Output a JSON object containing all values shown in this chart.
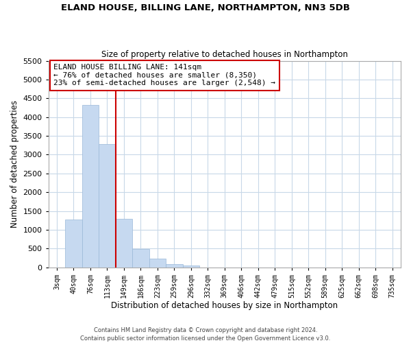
{
  "title": "ELAND HOUSE, BILLING LANE, NORTHAMPTON, NN3 5DB",
  "subtitle": "Size of property relative to detached houses in Northampton",
  "xlabel": "Distribution of detached houses by size in Northampton",
  "ylabel": "Number of detached properties",
  "bar_labels": [
    "3sqm",
    "40sqm",
    "76sqm",
    "113sqm",
    "149sqm",
    "186sqm",
    "223sqm",
    "259sqm",
    "296sqm",
    "332sqm",
    "369sqm",
    "406sqm",
    "442sqm",
    "479sqm",
    "515sqm",
    "552sqm",
    "589sqm",
    "625sqm",
    "662sqm",
    "698sqm",
    "735sqm"
  ],
  "bar_values": [
    0,
    1270,
    4320,
    3290,
    1290,
    480,
    235,
    85,
    45,
    0,
    0,
    0,
    0,
    0,
    0,
    0,
    0,
    0,
    0,
    0,
    0
  ],
  "bar_color": "#c6d9f0",
  "bar_edge_color": "#9ab8d8",
  "vline_color": "#cc0000",
  "vline_x_index": 3.5,
  "annotation_line1": "ELAND HOUSE BILLING LANE: 141sqm",
  "annotation_line2": "← 76% of detached houses are smaller (8,350)",
  "annotation_line3": "23% of semi-detached houses are larger (2,548) →",
  "ylim": [
    0,
    5500
  ],
  "yticks": [
    0,
    500,
    1000,
    1500,
    2000,
    2500,
    3000,
    3500,
    4000,
    4500,
    5000,
    5500
  ],
  "footer_line1": "Contains HM Land Registry data © Crown copyright and database right 2024.",
  "footer_line2": "Contains public sector information licensed under the Open Government Licence v3.0.",
  "bg_color": "#ffffff",
  "grid_color": "#c8d8e8"
}
